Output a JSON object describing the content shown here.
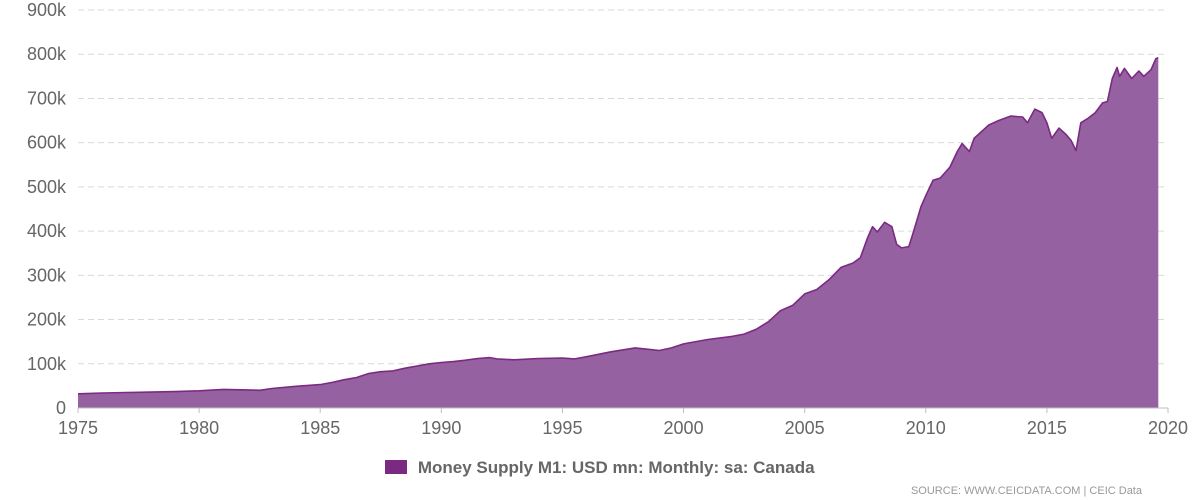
{
  "chart_data": {
    "type": "area",
    "title": "",
    "xlabel": "",
    "ylabel": "",
    "xlim": [
      1975,
      2020
    ],
    "ylim": [
      0,
      900000
    ],
    "x_ticks": [
      1975,
      1980,
      1985,
      1990,
      1995,
      2000,
      2005,
      2010,
      2015,
      2020
    ],
    "x_tick_labels": [
      "1975",
      "1980",
      "1985",
      "1990",
      "1995",
      "2000",
      "2005",
      "2010",
      "2015",
      "2020"
    ],
    "y_ticks": [
      0,
      100000,
      200000,
      300000,
      400000,
      500000,
      600000,
      700000,
      800000,
      900000
    ],
    "y_tick_labels": [
      "0",
      "100k",
      "200k",
      "300k",
      "400k",
      "500k",
      "600k",
      "700k",
      "800k",
      "900k"
    ],
    "grid": "horizontal dashed",
    "legend_position": "bottom-center",
    "series": [
      {
        "name": "Money Supply M1: USD mn: Monthly: sa: Canada",
        "color": "#7b2a82",
        "fill_color": "#9561a1",
        "points": [
          [
            1975.0,
            32000
          ],
          [
            1976.0,
            34000
          ],
          [
            1977.0,
            35000
          ],
          [
            1978.0,
            36000
          ],
          [
            1979.0,
            37000
          ],
          [
            1980.0,
            39000
          ],
          [
            1981.0,
            42000
          ],
          [
            1982.0,
            41000
          ],
          [
            1982.5,
            40000
          ],
          [
            1983.0,
            44000
          ],
          [
            1984.0,
            49000
          ],
          [
            1985.0,
            53000
          ],
          [
            1985.5,
            58000
          ],
          [
            1986.0,
            64000
          ],
          [
            1986.5,
            69000
          ],
          [
            1987.0,
            78000
          ],
          [
            1987.5,
            82000
          ],
          [
            1988.0,
            84000
          ],
          [
            1988.5,
            90000
          ],
          [
            1989.0,
            95000
          ],
          [
            1989.5,
            100000
          ],
          [
            1990.0,
            103000
          ],
          [
            1990.5,
            105000
          ],
          [
            1991.0,
            108000
          ],
          [
            1991.5,
            112000
          ],
          [
            1992.0,
            114000
          ],
          [
            1992.3,
            111000
          ],
          [
            1993.0,
            109000
          ],
          [
            1994.0,
            112000
          ],
          [
            1995.0,
            113000
          ],
          [
            1995.5,
            111000
          ],
          [
            1996.0,
            116000
          ],
          [
            1997.0,
            127000
          ],
          [
            1998.0,
            136000
          ],
          [
            1998.5,
            133000
          ],
          [
            1999.0,
            130000
          ],
          [
            1999.5,
            136000
          ],
          [
            2000.0,
            145000
          ],
          [
            2001.0,
            155000
          ],
          [
            2002.0,
            162000
          ],
          [
            2002.5,
            167000
          ],
          [
            2003.0,
            178000
          ],
          [
            2003.5,
            195000
          ],
          [
            2004.0,
            220000
          ],
          [
            2004.5,
            232000
          ],
          [
            2005.0,
            258000
          ],
          [
            2005.5,
            268000
          ],
          [
            2006.0,
            290000
          ],
          [
            2006.5,
            318000
          ],
          [
            2007.0,
            328000
          ],
          [
            2007.3,
            340000
          ],
          [
            2007.6,
            385000
          ],
          [
            2007.8,
            410000
          ],
          [
            2008.0,
            398000
          ],
          [
            2008.3,
            420000
          ],
          [
            2008.6,
            410000
          ],
          [
            2008.8,
            370000
          ],
          [
            2009.0,
            362000
          ],
          [
            2009.3,
            365000
          ],
          [
            2009.5,
            400000
          ],
          [
            2009.8,
            455000
          ],
          [
            2010.0,
            480000
          ],
          [
            2010.3,
            515000
          ],
          [
            2010.6,
            520000
          ],
          [
            2011.0,
            545000
          ],
          [
            2011.3,
            580000
          ],
          [
            2011.5,
            598000
          ],
          [
            2011.8,
            580000
          ],
          [
            2012.0,
            610000
          ],
          [
            2012.3,
            625000
          ],
          [
            2012.6,
            640000
          ],
          [
            2013.0,
            650000
          ],
          [
            2013.5,
            660000
          ],
          [
            2014.0,
            658000
          ],
          [
            2014.2,
            645000
          ],
          [
            2014.5,
            676000
          ],
          [
            2014.8,
            668000
          ],
          [
            2015.0,
            645000
          ],
          [
            2015.2,
            610000
          ],
          [
            2015.5,
            633000
          ],
          [
            2015.8,
            618000
          ],
          [
            2016.0,
            605000
          ],
          [
            2016.2,
            582000
          ],
          [
            2016.4,
            645000
          ],
          [
            2016.7,
            655000
          ],
          [
            2017.0,
            668000
          ],
          [
            2017.3,
            690000
          ],
          [
            2017.5,
            693000
          ],
          [
            2017.7,
            745000
          ],
          [
            2017.9,
            770000
          ],
          [
            2018.0,
            750000
          ],
          [
            2018.2,
            768000
          ],
          [
            2018.5,
            745000
          ],
          [
            2018.8,
            762000
          ],
          [
            2019.0,
            750000
          ],
          [
            2019.3,
            765000
          ],
          [
            2019.5,
            790000
          ],
          [
            2019.6,
            792000
          ]
        ]
      }
    ],
    "legend": [
      {
        "label": "Money Supply M1: USD mn: Monthly: sa: Canada",
        "color": "#7b2a82"
      }
    ],
    "source": "SOURCE: WWW.CEICDATA.COM | CEIC Data"
  }
}
